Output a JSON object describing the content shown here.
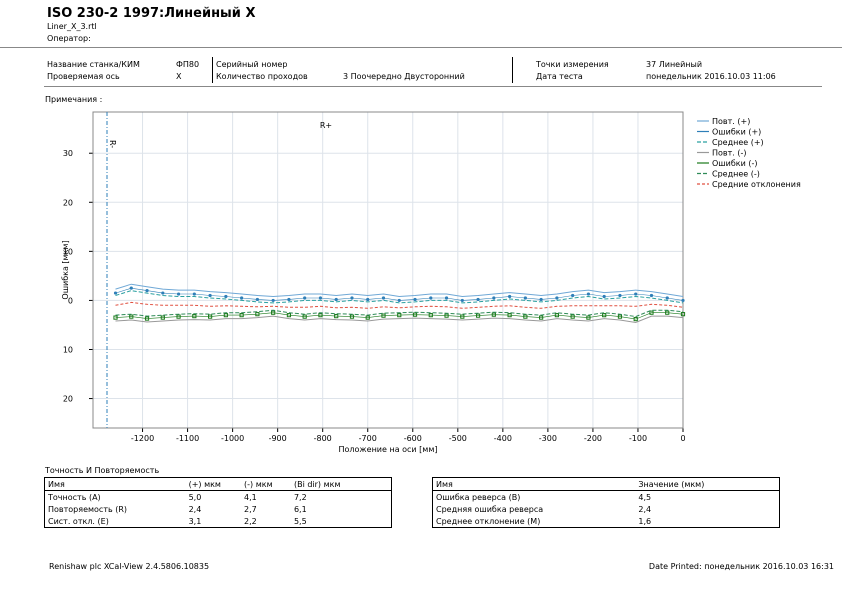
{
  "header": {
    "title": "ISO 230-2 1997:Линейный X",
    "file": "Liner_X_3.rtl",
    "operator": "Оператор:"
  },
  "info": {
    "machine_label": "Название станка/КИМ",
    "machine": "ФП80",
    "axis_label": "Проверяемая ось",
    "axis": "X",
    "serial_label": "Серийный номер",
    "runs_label": "Количество проходов",
    "runs": "3 Поочередно Двусторонний",
    "points_label": "Точки измерения",
    "points": "37 Линейный",
    "date_label": "Дата теста",
    "date": "понедельник 2016.10.03 11:06"
  },
  "notes": "Примечания :",
  "chart_data": {
    "type": "line",
    "ylabel": "Ошибка [мкм]",
    "xlabel": "Положение на оси [мм]",
    "annotations": [
      "R+",
      "R-"
    ],
    "x": [
      -1260,
      -1225,
      -1190,
      -1155,
      -1120,
      -1085,
      -1050,
      -1015,
      -980,
      -945,
      -910,
      -875,
      -840,
      -805,
      -770,
      -735,
      -700,
      -665,
      -630,
      -595,
      -560,
      -525,
      -490,
      -455,
      -420,
      -385,
      -350,
      -315,
      -280,
      -245,
      -210,
      -175,
      -140,
      -105,
      -70,
      -35,
      0
    ],
    "xlim": [
      -1310,
      0
    ],
    "ylim": [
      -26,
      38.4
    ],
    "xticks": [
      {
        "value": -1200,
        "label": "-1200"
      },
      {
        "value": -1100,
        "label": "-1100"
      },
      {
        "value": -1000,
        "label": "-1000"
      },
      -900,
      -800,
      -700,
      -600,
      -500,
      -400,
      -300,
      -200,
      -100,
      0
    ],
    "yticks": [
      30,
      20,
      10,
      0,
      {
        "value": -10,
        "label": "10"
      },
      {
        "value": -20,
        "label": "20"
      }
    ],
    "grid": true,
    "series": [
      {
        "name": "Повт. (+)",
        "color": "#6fa8d6",
        "values": [
          2.3,
          3.3,
          2.8,
          2.3,
          2.1,
          2.1,
          1.8,
          1.6,
          1.3,
          1,
          0.8,
          1,
          1.3,
          1.3,
          1,
          1.3,
          1,
          1.3,
          0.8,
          1,
          1.3,
          1.3,
          0.8,
          1,
          1.3,
          1.6,
          1.3,
          1,
          1.3,
          1.8,
          2.1,
          1.6,
          1.8,
          2.1,
          1.8,
          1.3,
          0.8
        ]
      },
      {
        "name": "Ошибки (+)",
        "color": "#2e7fb8",
        "values": [
          1.5,
          2.5,
          2,
          1.5,
          1.3,
          1.3,
          1,
          0.8,
          0.5,
          0.2,
          0,
          0.2,
          0.5,
          0.5,
          0.2,
          0.5,
          0.2,
          0.5,
          0,
          0.2,
          0.5,
          0.5,
          0,
          0.2,
          0.5,
          0.8,
          0.5,
          0.2,
          0.5,
          1,
          1.3,
          0.8,
          1,
          1.3,
          1,
          0.5,
          0
        ]
      },
      {
        "name": "Среднее (+)",
        "color": "#2aa0a0",
        "values": [
          1,
          2,
          1.5,
          1,
          0.8,
          0.8,
          0.5,
          0.3,
          0,
          -0.3,
          -0.5,
          -0.3,
          0,
          0,
          -0.3,
          0,
          -0.3,
          0,
          -0.5,
          -0.3,
          0,
          0,
          -0.5,
          -0.3,
          0,
          0.3,
          0,
          -0.3,
          0,
          0.5,
          0.8,
          0.3,
          0.5,
          0.8,
          0.5,
          0,
          -0.5
        ]
      },
      {
        "name": "Повт. (-)",
        "color": "#999999",
        "values": [
          -4.2,
          -4,
          -4.4,
          -4.2,
          -4,
          -3.9,
          -4,
          -3.7,
          -3.7,
          -3.5,
          -3.2,
          -3.7,
          -4,
          -3.7,
          -3.9,
          -4,
          -4.2,
          -3.8,
          -3.7,
          -3.6,
          -3.7,
          -3.8,
          -4,
          -3.8,
          -3.6,
          -3.7,
          -4,
          -4.2,
          -3.7,
          -4,
          -4.2,
          -3.7,
          -4,
          -4.5,
          -3.2,
          -3.2,
          -3.5
        ]
      },
      {
        "name": "Ошибки (-)",
        "color": "#1a7a1a",
        "values": [
          -3.5,
          -3.3,
          -3.7,
          -3.5,
          -3.3,
          -3.2,
          -3.3,
          -3,
          -3,
          -2.8,
          -2.5,
          -3,
          -3.3,
          -3,
          -3.2,
          -3.3,
          -3.5,
          -3.1,
          -3,
          -2.9,
          -3,
          -3.1,
          -3.3,
          -3.1,
          -2.9,
          -3,
          -3.3,
          -3.5,
          -3,
          -3.3,
          -3.5,
          -3,
          -3.3,
          -3.8,
          -2.5,
          -2.5,
          -2.8
        ]
      },
      {
        "name": "Среднее (-)",
        "color": "#2e8b57",
        "values": [
          -3,
          -2.8,
          -3.2,
          -3,
          -2.8,
          -2.7,
          -2.8,
          -2.5,
          -2.5,
          -2.3,
          -2,
          -2.5,
          -2.8,
          -2.5,
          -2.7,
          -2.8,
          -3,
          -2.6,
          -2.5,
          -2.4,
          -2.5,
          -2.6,
          -2.8,
          -2.6,
          -2.4,
          -2.5,
          -2.8,
          -3,
          -2.5,
          -2.8,
          -3,
          -2.5,
          -2.8,
          -3.3,
          -2,
          -2,
          -2.3
        ]
      },
      {
        "name": "Средние отклонения",
        "color": "#e05040",
        "values": [
          -1,
          -0.4,
          -0.8,
          -1,
          -1,
          -1,
          -1.2,
          -1.1,
          -1.2,
          -1.3,
          -1.2,
          -1.4,
          -1.4,
          -1.2,
          -1.5,
          -1.4,
          -1.6,
          -1.3,
          -1.5,
          -1.3,
          -1.2,
          -1.3,
          -1.6,
          -1.4,
          -1.2,
          -1.1,
          -1.4,
          -1.6,
          -1.2,
          -1.1,
          -1.1,
          -1.1,
          -1.1,
          -1.2,
          -0.8,
          -1,
          -1.4
        ]
      }
    ]
  },
  "accuracy": {
    "title": "Точность И Повторяемость",
    "header": [
      "Имя",
      "(+) мкм",
      "(-) мкм",
      "(Bi dir) мкм"
    ],
    "rows": [
      [
        "Точность (A)",
        "5,0",
        "4,1",
        "7,2"
      ],
      [
        "Повторяемость (R)",
        "2,4",
        "2,7",
        "6,1"
      ],
      [
        "Сист. откл. (E)",
        "3,1",
        "2,2",
        "5,5"
      ]
    ]
  },
  "reverse": {
    "header": [
      "Имя",
      "Значение (мкм)"
    ],
    "rows": [
      [
        "Ошибка реверса (B)",
        "4,5"
      ],
      [
        "Средняя ошибка реверса",
        "2,4"
      ],
      [
        "Среднее отклонение (M)",
        "1,6"
      ]
    ]
  },
  "footer": {
    "left": "Renishaw plc XCal-View 2.4.5806.10835",
    "right": "Date Printed: понедельник 2016.10.03 16:31"
  }
}
